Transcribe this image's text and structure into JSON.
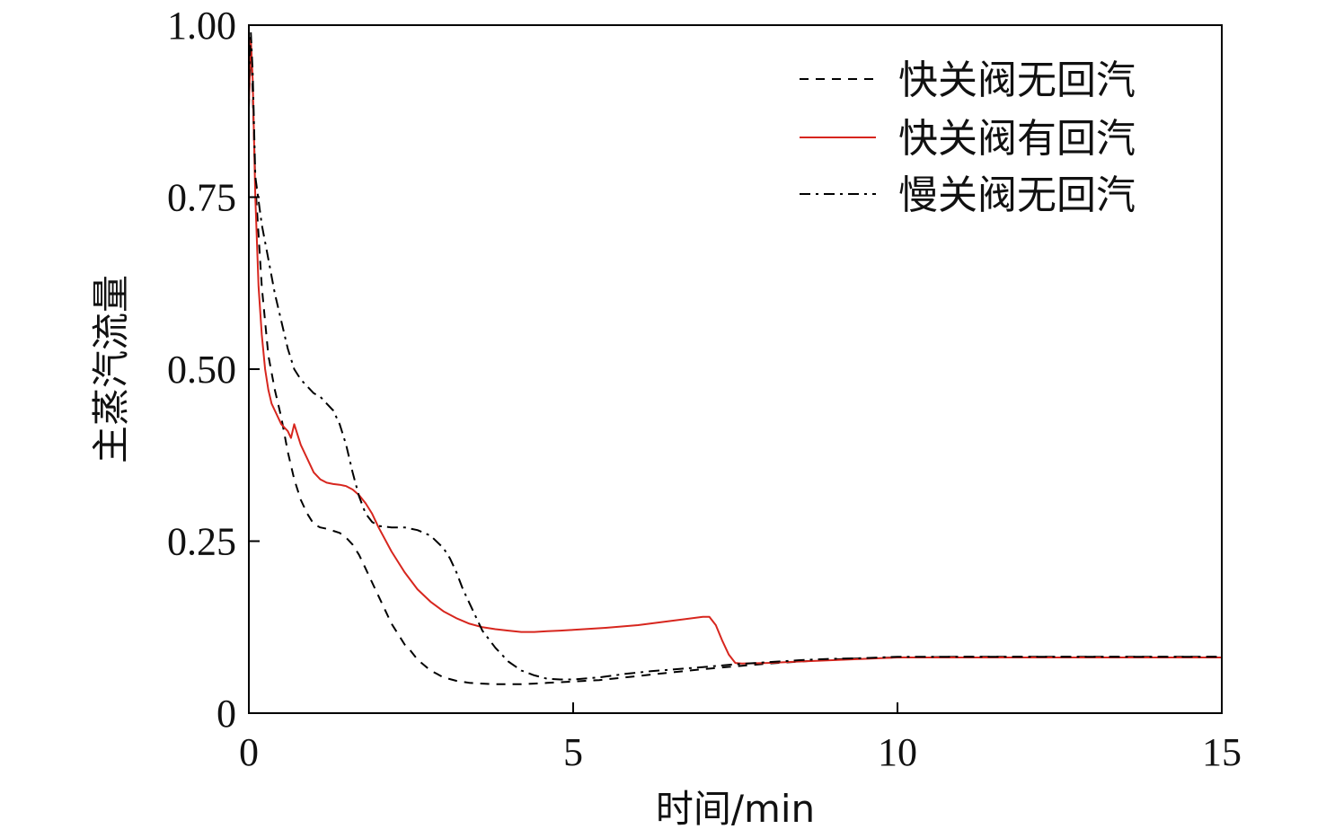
{
  "chart_data": {
    "type": "line",
    "title": "",
    "xlabel": "时间/min",
    "ylabel": "主蒸汽流量",
    "xlim": [
      0,
      15
    ],
    "ylim": [
      0,
      1
    ],
    "xticks": [
      0,
      5,
      10,
      15
    ],
    "xtick_labels": [
      "0",
      "5",
      "10",
      "15"
    ],
    "yticks": [
      0,
      0.25,
      0.5,
      0.75,
      1.0
    ],
    "ytick_labels": [
      "0",
      "0.25",
      "0.50",
      "0.75",
      "1.00"
    ],
    "grid": false,
    "legend_position": "top-right",
    "series": [
      {
        "name": "快关阀无回汽",
        "color": "#000000",
        "style": "dashed",
        "x": [
          0,
          0.03,
          0.06,
          0.1,
          0.2,
          0.3,
          0.4,
          0.5,
          0.6,
          0.7,
          0.8,
          0.9,
          1.0,
          1.1,
          1.2,
          1.3,
          1.4,
          1.5,
          1.6,
          1.7,
          1.8,
          1.9,
          2.0,
          2.1,
          2.2,
          2.3,
          2.4,
          2.5,
          2.6,
          2.7,
          2.8,
          2.9,
          3.0,
          3.2,
          3.4,
          3.6,
          3.8,
          4.0,
          4.2,
          4.4,
          4.6,
          4.8,
          5.0,
          5.4,
          5.8,
          6.2,
          6.6,
          7.0,
          7.5,
          8.0,
          8.5,
          9.0,
          9.5,
          10.0,
          11.0,
          12.0,
          13.0,
          14.0,
          15.0
        ],
        "y": [
          0.88,
          0.98,
          0.9,
          0.77,
          0.62,
          0.52,
          0.47,
          0.43,
          0.38,
          0.34,
          0.31,
          0.29,
          0.275,
          0.27,
          0.268,
          0.265,
          0.262,
          0.255,
          0.245,
          0.23,
          0.21,
          0.19,
          0.17,
          0.15,
          0.13,
          0.115,
          0.1,
          0.09,
          0.078,
          0.07,
          0.062,
          0.057,
          0.052,
          0.047,
          0.044,
          0.043,
          0.042,
          0.042,
          0.042,
          0.043,
          0.044,
          0.045,
          0.046,
          0.048,
          0.052,
          0.056,
          0.06,
          0.064,
          0.068,
          0.072,
          0.075,
          0.078,
          0.08,
          0.081,
          0.082,
          0.082,
          0.082,
          0.082,
          0.082
        ]
      },
      {
        "name": "快关阀有回汽",
        "color": "#d7261e",
        "style": "solid",
        "x": [
          0,
          0.03,
          0.06,
          0.1,
          0.15,
          0.2,
          0.25,
          0.3,
          0.35,
          0.4,
          0.5,
          0.6,
          0.65,
          0.7,
          0.8,
          0.9,
          1.0,
          1.1,
          1.2,
          1.3,
          1.4,
          1.5,
          1.6,
          1.7,
          1.8,
          1.9,
          2.0,
          2.2,
          2.4,
          2.6,
          2.8,
          3.0,
          3.2,
          3.4,
          3.6,
          3.8,
          4.0,
          4.2,
          4.4,
          4.6,
          4.8,
          5.0,
          5.5,
          6.0,
          6.5,
          7.0,
          7.1,
          7.2,
          7.3,
          7.4,
          7.5,
          7.6,
          8.0,
          8.5,
          9.0,
          9.5,
          10.0,
          11.0,
          12.0,
          13.0,
          14.0,
          15.0
        ],
        "y": [
          0.88,
          0.98,
          0.92,
          0.75,
          0.62,
          0.55,
          0.5,
          0.47,
          0.45,
          0.44,
          0.42,
          0.41,
          0.4,
          0.42,
          0.39,
          0.37,
          0.35,
          0.34,
          0.335,
          0.333,
          0.332,
          0.33,
          0.325,
          0.317,
          0.305,
          0.29,
          0.27,
          0.235,
          0.205,
          0.18,
          0.162,
          0.148,
          0.138,
          0.13,
          0.125,
          0.122,
          0.12,
          0.118,
          0.118,
          0.119,
          0.12,
          0.121,
          0.124,
          0.128,
          0.134,
          0.14,
          0.14,
          0.128,
          0.105,
          0.085,
          0.073,
          0.072,
          0.073,
          0.075,
          0.077,
          0.079,
          0.081,
          0.081,
          0.081,
          0.081,
          0.081,
          0.081
        ]
      },
      {
        "name": "慢关阀无回汽",
        "color": "#000000",
        "style": "dashdot",
        "x": [
          0,
          0.03,
          0.06,
          0.1,
          0.2,
          0.3,
          0.4,
          0.5,
          0.6,
          0.7,
          0.8,
          0.9,
          1.0,
          1.1,
          1.2,
          1.3,
          1.4,
          1.5,
          1.6,
          1.7,
          1.8,
          1.9,
          2.0,
          2.2,
          2.4,
          2.6,
          2.8,
          3.0,
          3.1,
          3.2,
          3.3,
          3.4,
          3.5,
          3.6,
          3.8,
          4.0,
          4.2,
          4.4,
          4.6,
          4.8,
          5.0,
          5.4,
          5.8,
          6.2,
          6.6,
          7.0,
          7.5,
          8.0,
          8.5,
          9.0,
          9.5,
          10.0,
          11.0,
          12.0,
          13.0,
          14.0,
          15.0
        ],
        "y": [
          0.92,
          0.99,
          0.93,
          0.78,
          0.71,
          0.66,
          0.61,
          0.57,
          0.53,
          0.5,
          0.485,
          0.475,
          0.465,
          0.46,
          0.45,
          0.44,
          0.42,
          0.39,
          0.35,
          0.315,
          0.29,
          0.278,
          0.272,
          0.27,
          0.27,
          0.266,
          0.258,
          0.24,
          0.225,
          0.205,
          0.18,
          0.16,
          0.14,
          0.12,
          0.095,
          0.075,
          0.062,
          0.055,
          0.05,
          0.049,
          0.049,
          0.052,
          0.057,
          0.061,
          0.064,
          0.067,
          0.071,
          0.074,
          0.077,
          0.079,
          0.08,
          0.082,
          0.082,
          0.082,
          0.082,
          0.082,
          0.082
        ]
      }
    ]
  }
}
